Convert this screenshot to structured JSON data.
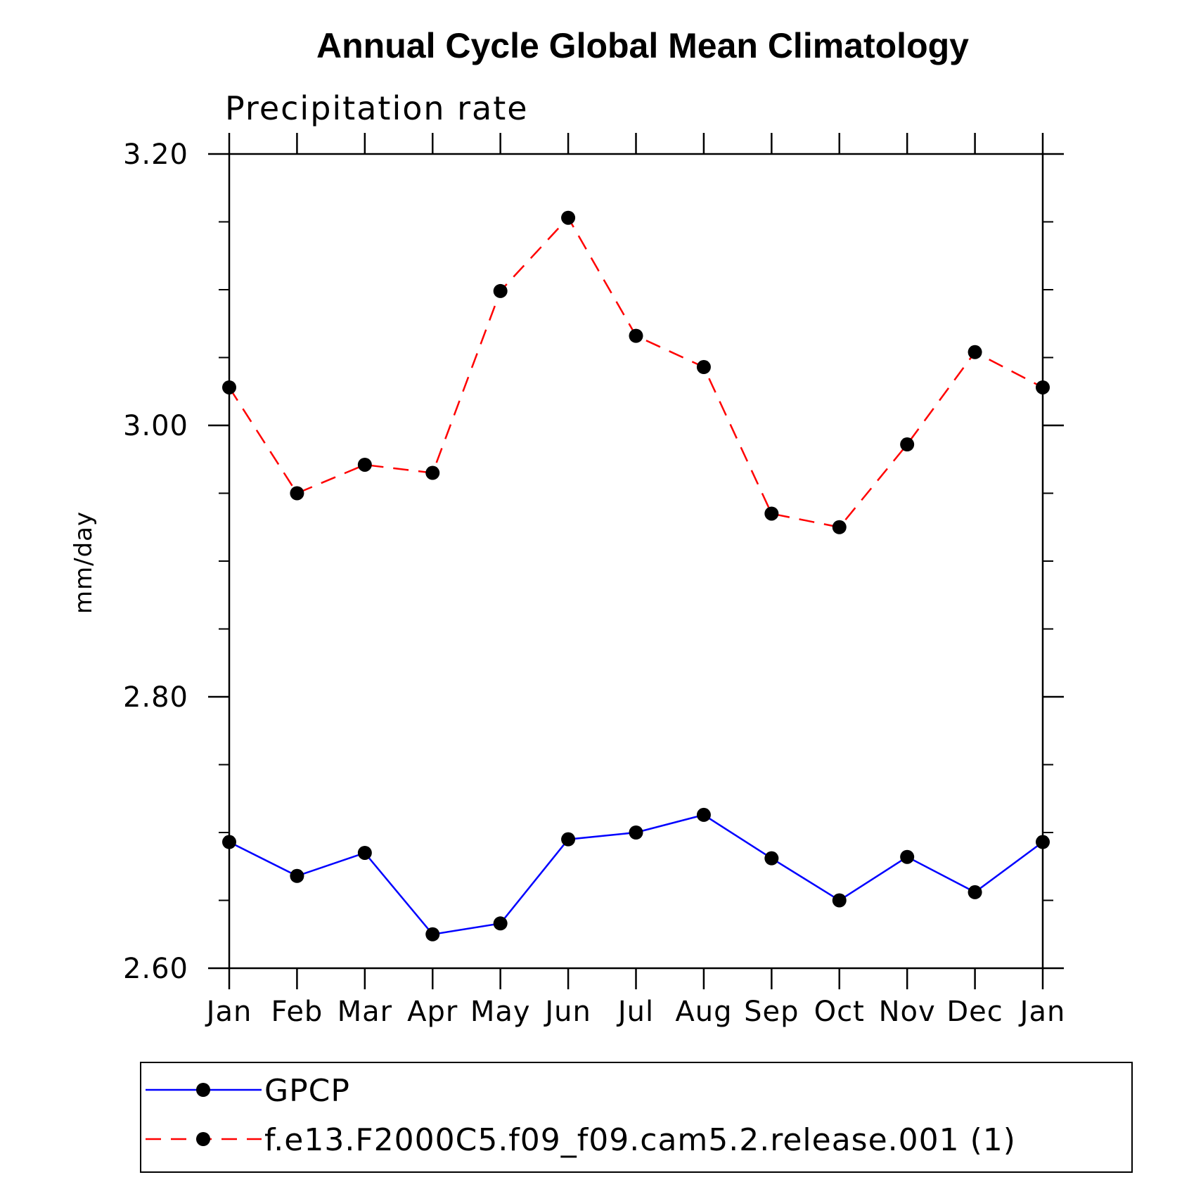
{
  "chart_data": {
    "type": "line",
    "title": "Annual Cycle Global Mean Climatology",
    "subtitle": "Precipitation rate",
    "ylabel": "mm/day",
    "xlabel": "",
    "categories": [
      "Jan",
      "Feb",
      "Mar",
      "Apr",
      "May",
      "Jun",
      "Jul",
      "Aug",
      "Sep",
      "Oct",
      "Nov",
      "Dec",
      "Jan"
    ],
    "ylim": [
      2.6,
      3.2
    ],
    "yticks": [
      "2.60",
      "2.80",
      "3.00",
      "3.20"
    ],
    "ytick_values": [
      2.6,
      2.8,
      3.0,
      3.2
    ],
    "y_minor_step": 0.05,
    "grid": false,
    "legend_position": "bottom",
    "series": [
      {
        "name": "GPCP",
        "color": "#0000ff",
        "line_style": "solid",
        "marker": "filled-circle",
        "values": [
          2.693,
          2.668,
          2.685,
          2.625,
          2.633,
          2.695,
          2.7,
          2.713,
          2.681,
          2.65,
          2.682,
          2.656,
          2.693
        ]
      },
      {
        "name": "f.e13.F2000C5.f09_f09.cam5.2.release.001 (1)",
        "color": "#ff0000",
        "line_style": "dashed",
        "marker": "filled-circle",
        "values": [
          3.028,
          2.95,
          2.971,
          2.965,
          3.099,
          3.153,
          3.066,
          3.043,
          2.935,
          2.925,
          2.986,
          3.054,
          3.028
        ]
      }
    ]
  }
}
